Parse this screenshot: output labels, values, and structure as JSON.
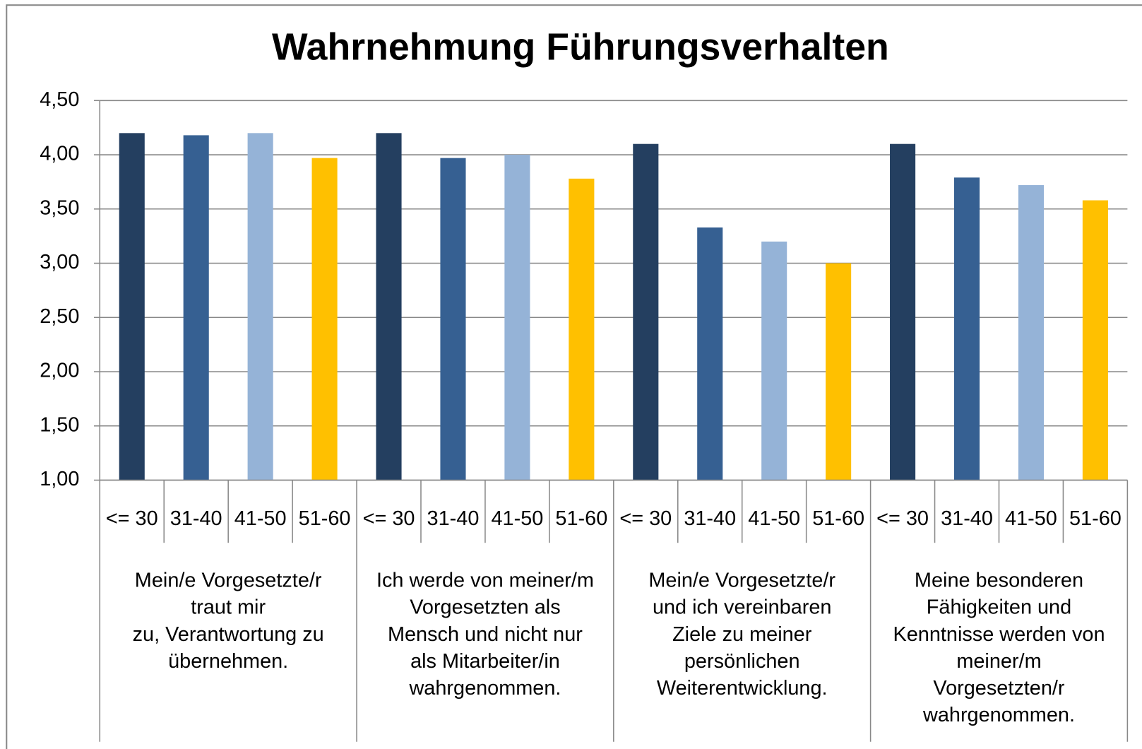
{
  "chart_data": {
    "type": "bar",
    "title": "Wahrnehmung Führungsverhalten",
    "categories": [
      [
        "Mein/e Vorgesetzte/r",
        "traut mir",
        "zu, Verantwortung  zu",
        "übernehmen."
      ],
      [
        "Ich werde  von meiner/m",
        "Vorgesetzten als",
        "Mensch und nicht nur",
        "als Mitarbeiter/in",
        "wahrgenommen."
      ],
      [
        "Mein/e Vorgesetzte/r",
        "und ich vereinbaren",
        "Ziele zu meiner",
        "persönlichen",
        "Weiterentwicklung."
      ],
      [
        "Meine besonderen",
        "Fähigkeiten und",
        "Kenntnisse werden von",
        "meiner/m",
        "Vorgesetzten/r",
        "wahrgenommen."
      ]
    ],
    "series": [
      {
        "name": "<= 30",
        "color": "#243f60",
        "values": [
          4.2,
          4.2,
          4.1,
          4.1
        ]
      },
      {
        "name": "31-40",
        "color": "#366092",
        "values": [
          4.18,
          3.97,
          3.33,
          3.79
        ]
      },
      {
        "name": "41-50",
        "color": "#95b3d7",
        "values": [
          4.2,
          4.0,
          3.2,
          3.72
        ]
      },
      {
        "name": "51-60",
        "color": "#ffc000",
        "values": [
          3.97,
          3.78,
          3.0,
          3.58
        ]
      }
    ],
    "ylim": [
      1,
      4.5
    ],
    "yticks": [
      {
        "value": 1,
        "label": "1,00"
      },
      {
        "value": 1.5,
        "label": "1,50"
      },
      {
        "value": 2,
        "label": "2,00"
      },
      {
        "value": 2.5,
        "label": "2,50"
      },
      {
        "value": 3,
        "label": "3,00"
      },
      {
        "value": 3.5,
        "label": "3,50"
      },
      {
        "value": 4,
        "label": "4,00"
      },
      {
        "value": 4.5,
        "label": "4,50"
      }
    ],
    "grid": true
  }
}
